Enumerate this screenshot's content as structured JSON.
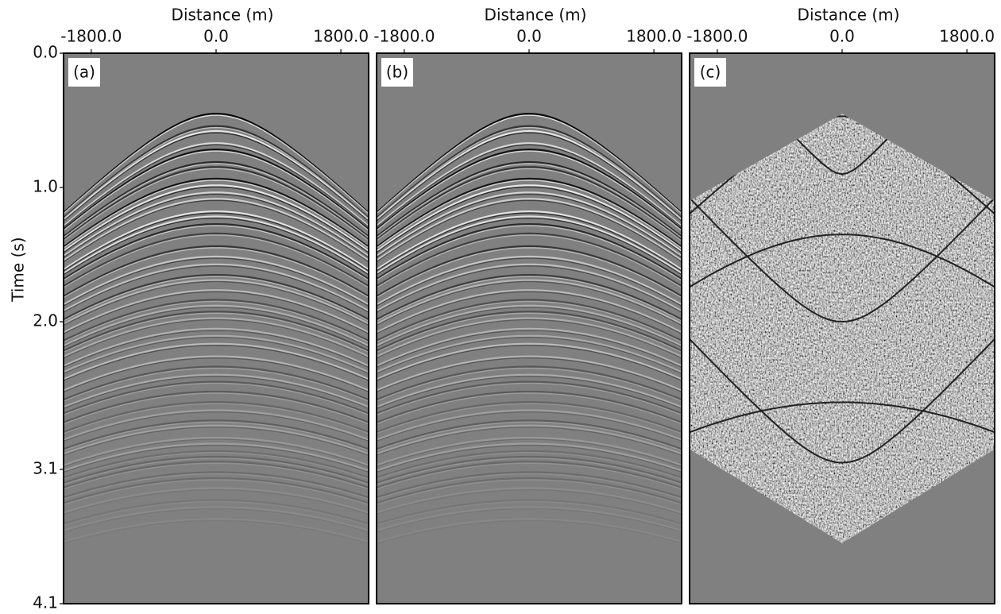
{
  "chart_data": [
    {
      "type": "image",
      "panel_label": "(a)",
      "xlabel": "Distance (m)",
      "ylabel": "Time (s)",
      "xlim": [
        -2200,
        2200
      ],
      "xticks": [
        {
          "value": -1800,
          "label": "-1800.0"
        },
        {
          "value": 0,
          "label": "0.0"
        },
        {
          "value": 1800,
          "label": "1800.0"
        }
      ],
      "ylim": [
        4.1,
        0
      ],
      "yticks": [
        {
          "value": 0,
          "label": "0.0"
        },
        {
          "value": 1,
          "label": "1.0"
        },
        {
          "value": 2,
          "label": "2.0"
        },
        {
          "value": 3.1,
          "label": "3.1"
        },
        {
          "value": 4.1,
          "label": "4.1"
        }
      ]
    },
    {
      "type": "image",
      "panel_label": "(b)",
      "xlabel": "Distance (m)",
      "xlim": [
        -2200,
        2200
      ],
      "xticks": [
        {
          "value": -1800,
          "label": "-1800.0"
        },
        {
          "value": 0,
          "label": "0.0"
        },
        {
          "value": 1800,
          "label": "1800.0"
        }
      ],
      "ylim": [
        4.1,
        0
      ]
    },
    {
      "type": "noise",
      "panel_label": "(c)",
      "xlabel": "Distance (m)",
      "xlim": [
        -2200,
        2200
      ],
      "xticks": [
        {
          "value": -1800,
          "label": "-1800.0"
        },
        {
          "value": 0,
          "label": "0.0"
        },
        {
          "value": 1800,
          "label": "1800.0"
        }
      ],
      "ylim": [
        4.1,
        0
      ]
    }
  ]
}
